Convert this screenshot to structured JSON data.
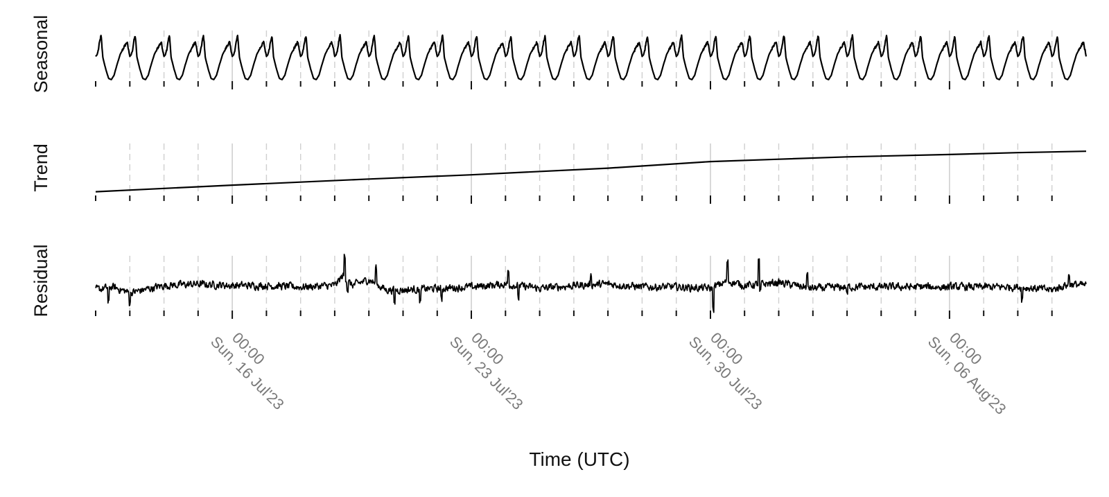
{
  "chart_data": {
    "type": "line",
    "layout": "stacked panels sharing one time axis (series decomposition)",
    "xlabel": "Time (UTC)",
    "x_range": [
      "2023-07-12T00:00",
      "2023-08-10T00:00"
    ],
    "x_tick_labels": [
      {
        "time": "00:00",
        "date": "Sun, 16 Jul'23"
      },
      {
        "time": "00:00",
        "date": "Sun, 23 Jul'23"
      },
      {
        "time": "00:00",
        "date": "Sun, 30 Jul'23"
      },
      {
        "time": "00:00",
        "date": "Sun, 06 Aug'23"
      }
    ],
    "major_gridlines": "weekly (Sunday 00:00), solid light grey",
    "minor_gridlines": "daily, dashed light grey",
    "y_axis_ticks": "none",
    "grid": true,
    "legend": "none",
    "panels": [
      {
        "name": "Seasonal",
        "ylabel": "Seasonal",
        "ylim": [
          -1.1,
          1.1
        ],
        "period_days": 1,
        "daily_profile": [
          [
            0.0,
            0.05
          ],
          [
            0.04,
            0.12
          ],
          [
            0.08,
            0.35
          ],
          [
            0.12,
            0.75
          ],
          [
            0.16,
            1.0
          ],
          [
            0.21,
            0.0
          ],
          [
            0.3,
            -0.55
          ],
          [
            0.38,
            -0.95
          ],
          [
            0.46,
            -1.0
          ],
          [
            0.54,
            -0.8
          ],
          [
            0.62,
            -0.35
          ],
          [
            0.72,
            0.15
          ],
          [
            0.84,
            0.5
          ],
          [
            0.92,
            0.7
          ],
          [
            1.0,
            0.05
          ]
        ]
      },
      {
        "name": "Trend",
        "ylabel": "Trend",
        "ylim": [
          0,
          1
        ],
        "points": [
          [
            "2023-07-12T00:00",
            0.02
          ],
          [
            "2023-07-16T00:00",
            0.16
          ],
          [
            "2023-07-20T00:00",
            0.29
          ],
          [
            "2023-07-23T00:00",
            0.38
          ],
          [
            "2023-07-27T00:00",
            0.52
          ],
          [
            "2023-07-30T00:00",
            0.66
          ],
          [
            "2023-08-01T00:00",
            0.71
          ],
          [
            "2023-08-03T00:00",
            0.76
          ],
          [
            "2023-08-06T00:00",
            0.81
          ],
          [
            "2023-08-08T00:00",
            0.85
          ],
          [
            "2023-08-10T00:00",
            0.88
          ]
        ]
      },
      {
        "name": "Residual",
        "ylabel": "Residual",
        "ylim": [
          -1,
          1
        ],
        "base_points": [
          [
            "2023-07-12T00:00",
            -0.1
          ],
          [
            "2023-07-12T12:00",
            0.0
          ],
          [
            "2023-07-13T00:00",
            -0.2
          ],
          [
            "2023-07-14T00:00",
            0.05
          ],
          [
            "2023-07-15T00:00",
            0.1
          ],
          [
            "2023-07-16T00:00",
            0.05
          ],
          [
            "2023-07-17T00:00",
            0.05
          ],
          [
            "2023-07-18T00:00",
            0.0
          ],
          [
            "2023-07-19T00:00",
            0.05
          ],
          [
            "2023-07-19T06:00",
            0.4
          ],
          [
            "2023-07-19T12:00",
            0.05
          ],
          [
            "2023-07-20T00:00",
            0.25
          ],
          [
            "2023-07-20T12:00",
            -0.1
          ],
          [
            "2023-07-21T00:00",
            -0.1
          ],
          [
            "2023-07-22T00:00",
            -0.05
          ],
          [
            "2023-07-23T00:00",
            0.0
          ],
          [
            "2023-07-24T00:00",
            0.1
          ],
          [
            "2023-07-25T00:00",
            -0.05
          ],
          [
            "2023-07-26T00:00",
            0.05
          ],
          [
            "2023-07-27T00:00",
            0.1
          ],
          [
            "2023-07-28T00:00",
            0.0
          ],
          [
            "2023-07-29T00:00",
            0.0
          ],
          [
            "2023-07-30T00:00",
            -0.05
          ],
          [
            "2023-07-30T12:00",
            0.2
          ],
          [
            "2023-07-31T00:00",
            0.05
          ],
          [
            "2023-08-01T00:00",
            0.15
          ],
          [
            "2023-08-02T00:00",
            -0.05
          ],
          [
            "2023-08-03T00:00",
            0.0
          ],
          [
            "2023-08-04T00:00",
            0.0
          ],
          [
            "2023-08-05T00:00",
            0.0
          ],
          [
            "2023-08-06T00:00",
            0.0
          ],
          [
            "2023-08-07T00:00",
            0.0
          ],
          [
            "2023-08-08T00:00",
            0.0
          ],
          [
            "2023-08-09T00:00",
            -0.1
          ],
          [
            "2023-08-09T12:00",
            0.1
          ],
          [
            "2023-08-10T00:00",
            0.05
          ]
        ],
        "noise_amplitude": 0.22,
        "spikes": [
          [
            "2023-07-12T09:00",
            -0.55
          ],
          [
            "2023-07-13T00:00",
            -0.35
          ],
          [
            "2023-07-19T07:00",
            0.7
          ],
          [
            "2023-07-19T09:00",
            -0.3
          ],
          [
            "2023-07-20T05:00",
            0.55
          ],
          [
            "2023-07-20T18:00",
            -0.45
          ],
          [
            "2023-07-21T12:00",
            -0.5
          ],
          [
            "2023-07-22T03:00",
            -0.4
          ],
          [
            "2023-07-24T02:00",
            0.45
          ],
          [
            "2023-07-24T09:00",
            -0.45
          ],
          [
            "2023-07-26T12:00",
            0.35
          ],
          [
            "2023-07-30T02:00",
            -0.75
          ],
          [
            "2023-07-30T12:00",
            0.65
          ],
          [
            "2023-07-31T10:00",
            0.8
          ],
          [
            "2023-07-31T11:00",
            -0.3
          ],
          [
            "2023-08-01T20:00",
            0.4
          ],
          [
            "2023-08-03T00:00",
            -0.25
          ],
          [
            "2023-08-08T03:00",
            -0.4
          ],
          [
            "2023-08-09T12:00",
            0.3
          ]
        ]
      }
    ]
  }
}
